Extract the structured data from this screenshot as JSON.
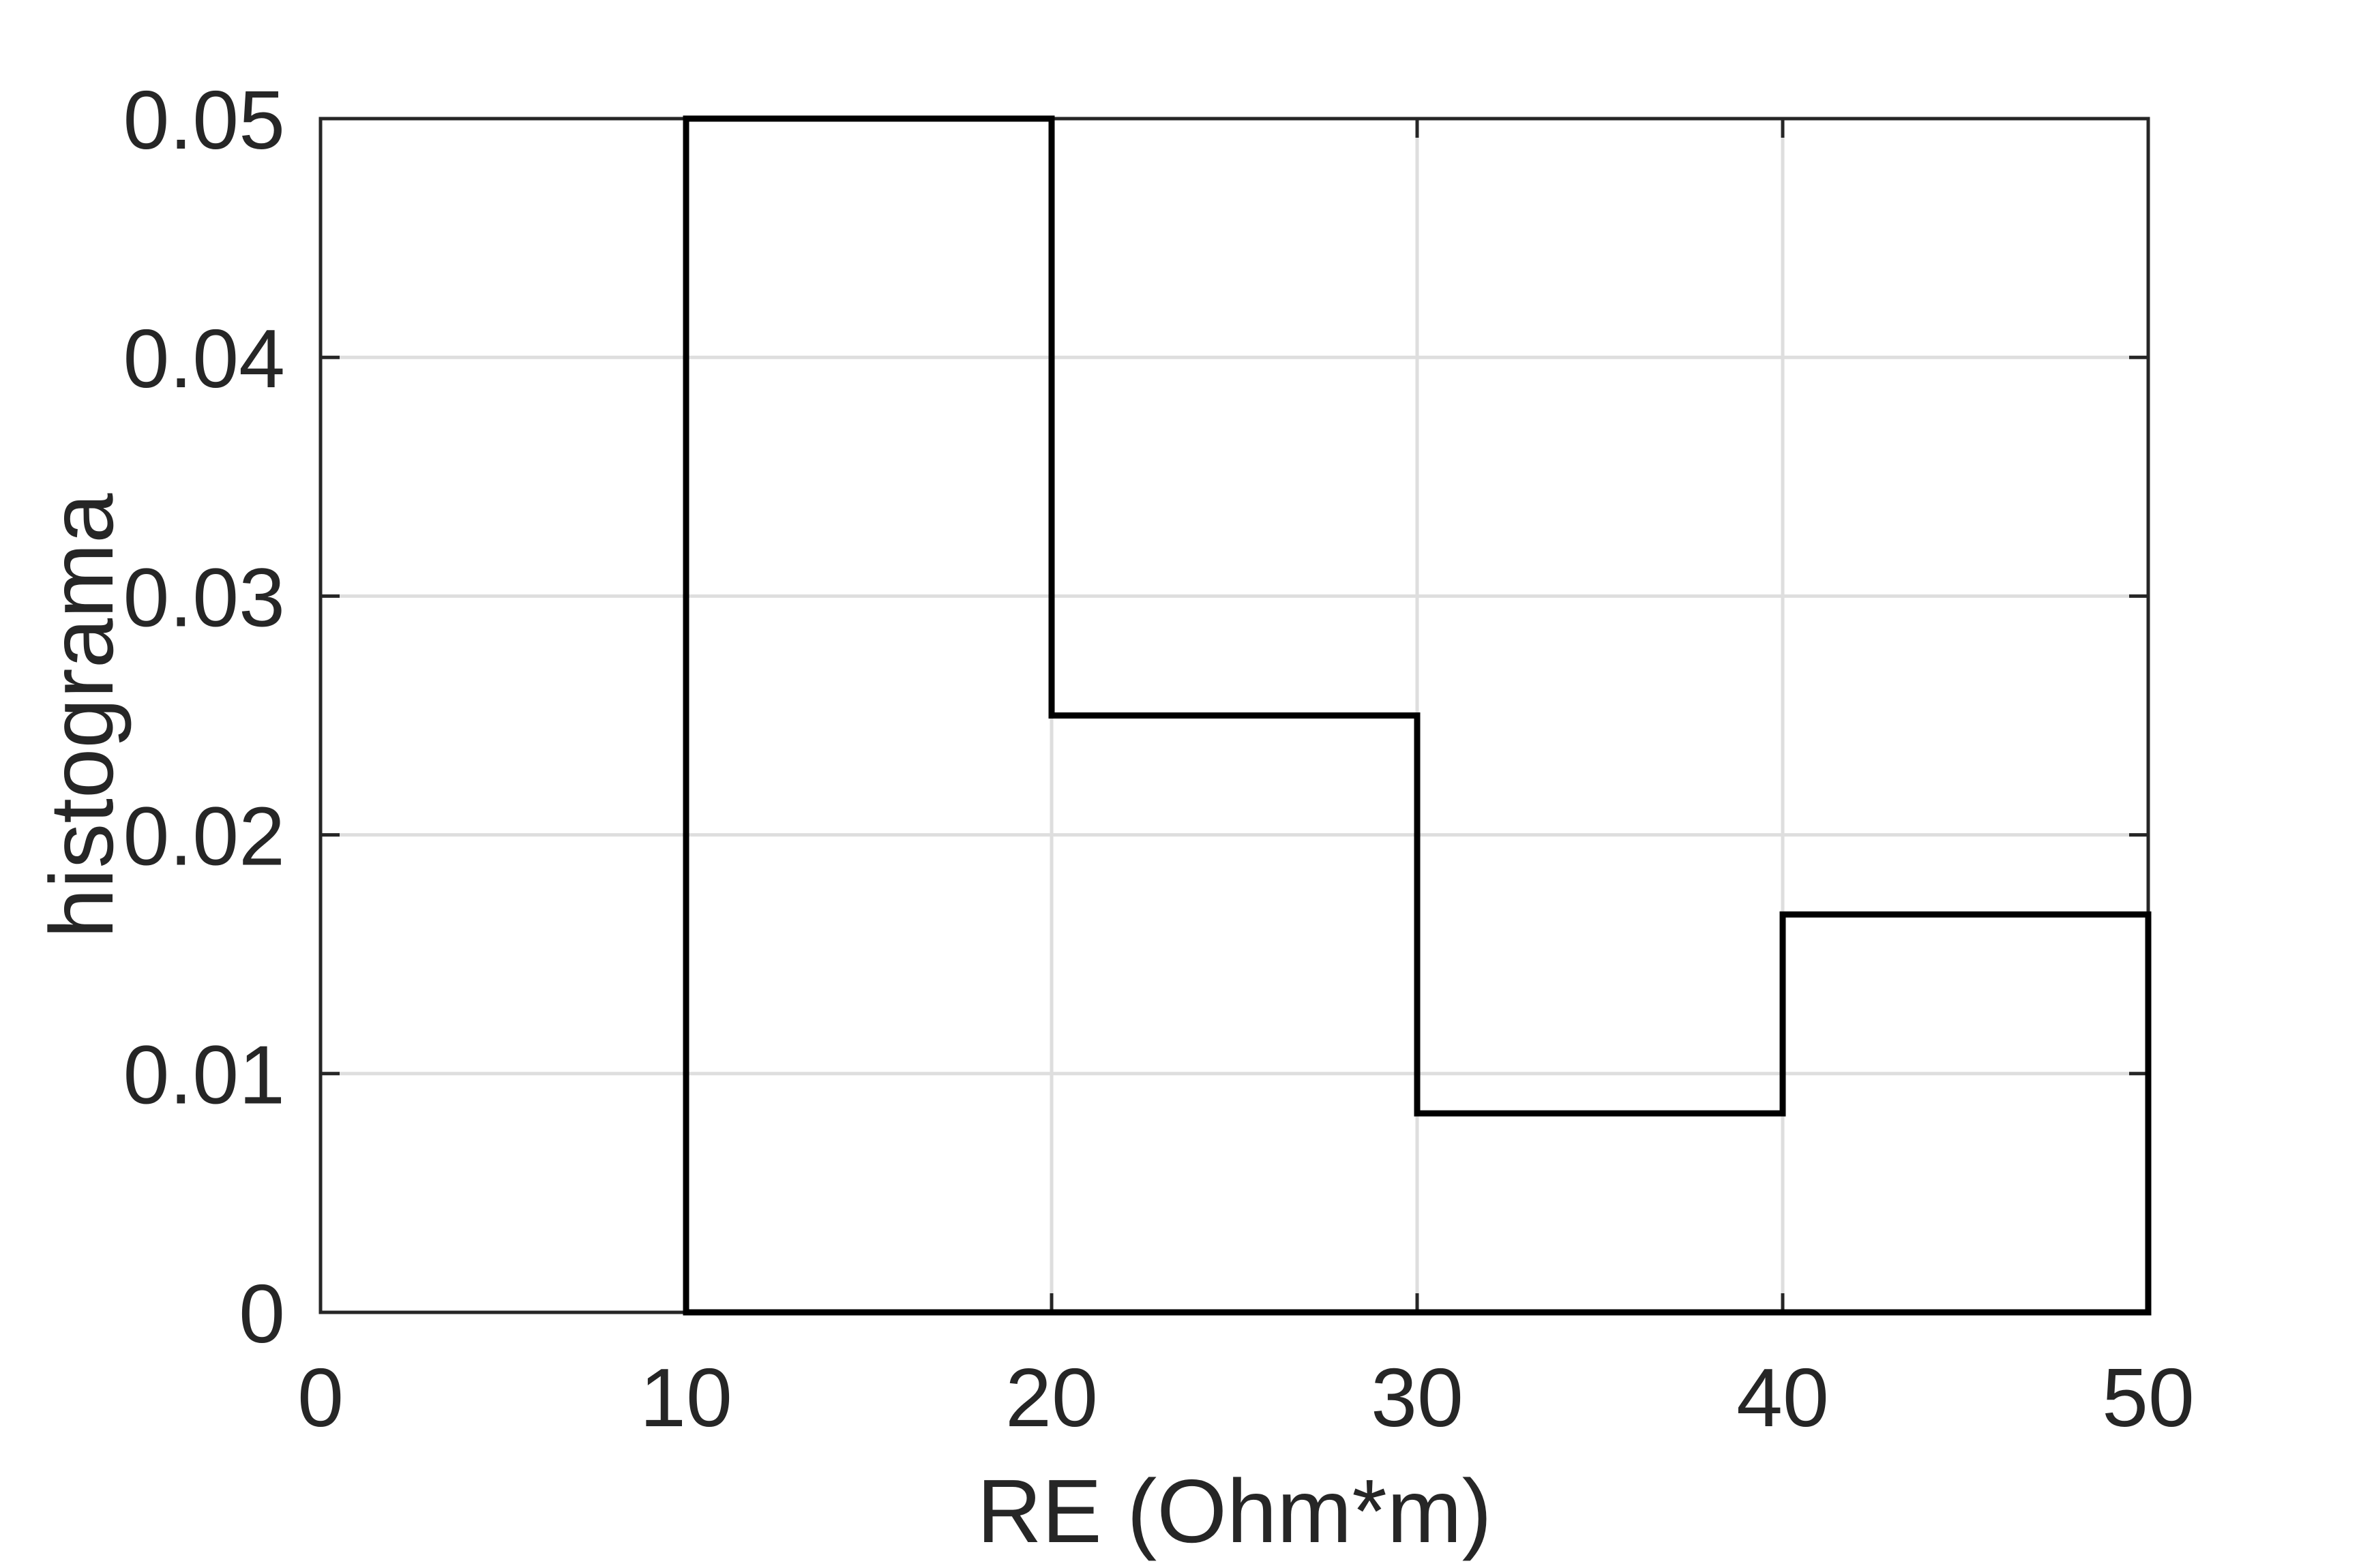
{
  "figure": {
    "background_color": "#ffffff",
    "axes_color": "#262626",
    "grid_color": "#dedede",
    "histogram_line_color": "#000000",
    "tick_label_color": "#262626",
    "axis_label_color": "#262626"
  },
  "chart_data": {
    "type": "bar",
    "display_style": "stairs-outline-histogram",
    "title": "",
    "xlabel": "RE (Ohm*m)",
    "ylabel": "histograma",
    "xlim": [
      0,
      50
    ],
    "ylim": [
      0,
      0.05
    ],
    "xticks": [
      0,
      10,
      20,
      30,
      40,
      50
    ],
    "xtick_labels": [
      "0",
      "10",
      "20",
      "30",
      "40",
      "50"
    ],
    "yticks": [
      0,
      0.01,
      0.02,
      0.03,
      0.04,
      0.05
    ],
    "ytick_labels": [
      "0",
      "0.01",
      "0.02",
      "0.03",
      "0.04",
      "0.05"
    ],
    "grid": true,
    "box": true,
    "tick_direction": "in",
    "baseline": 0,
    "bin_edges": [
      10,
      20,
      30,
      40,
      50
    ],
    "bin_values": [
      0.05,
      0.025,
      0.008333,
      0.016667
    ],
    "normalization": "pdf"
  }
}
